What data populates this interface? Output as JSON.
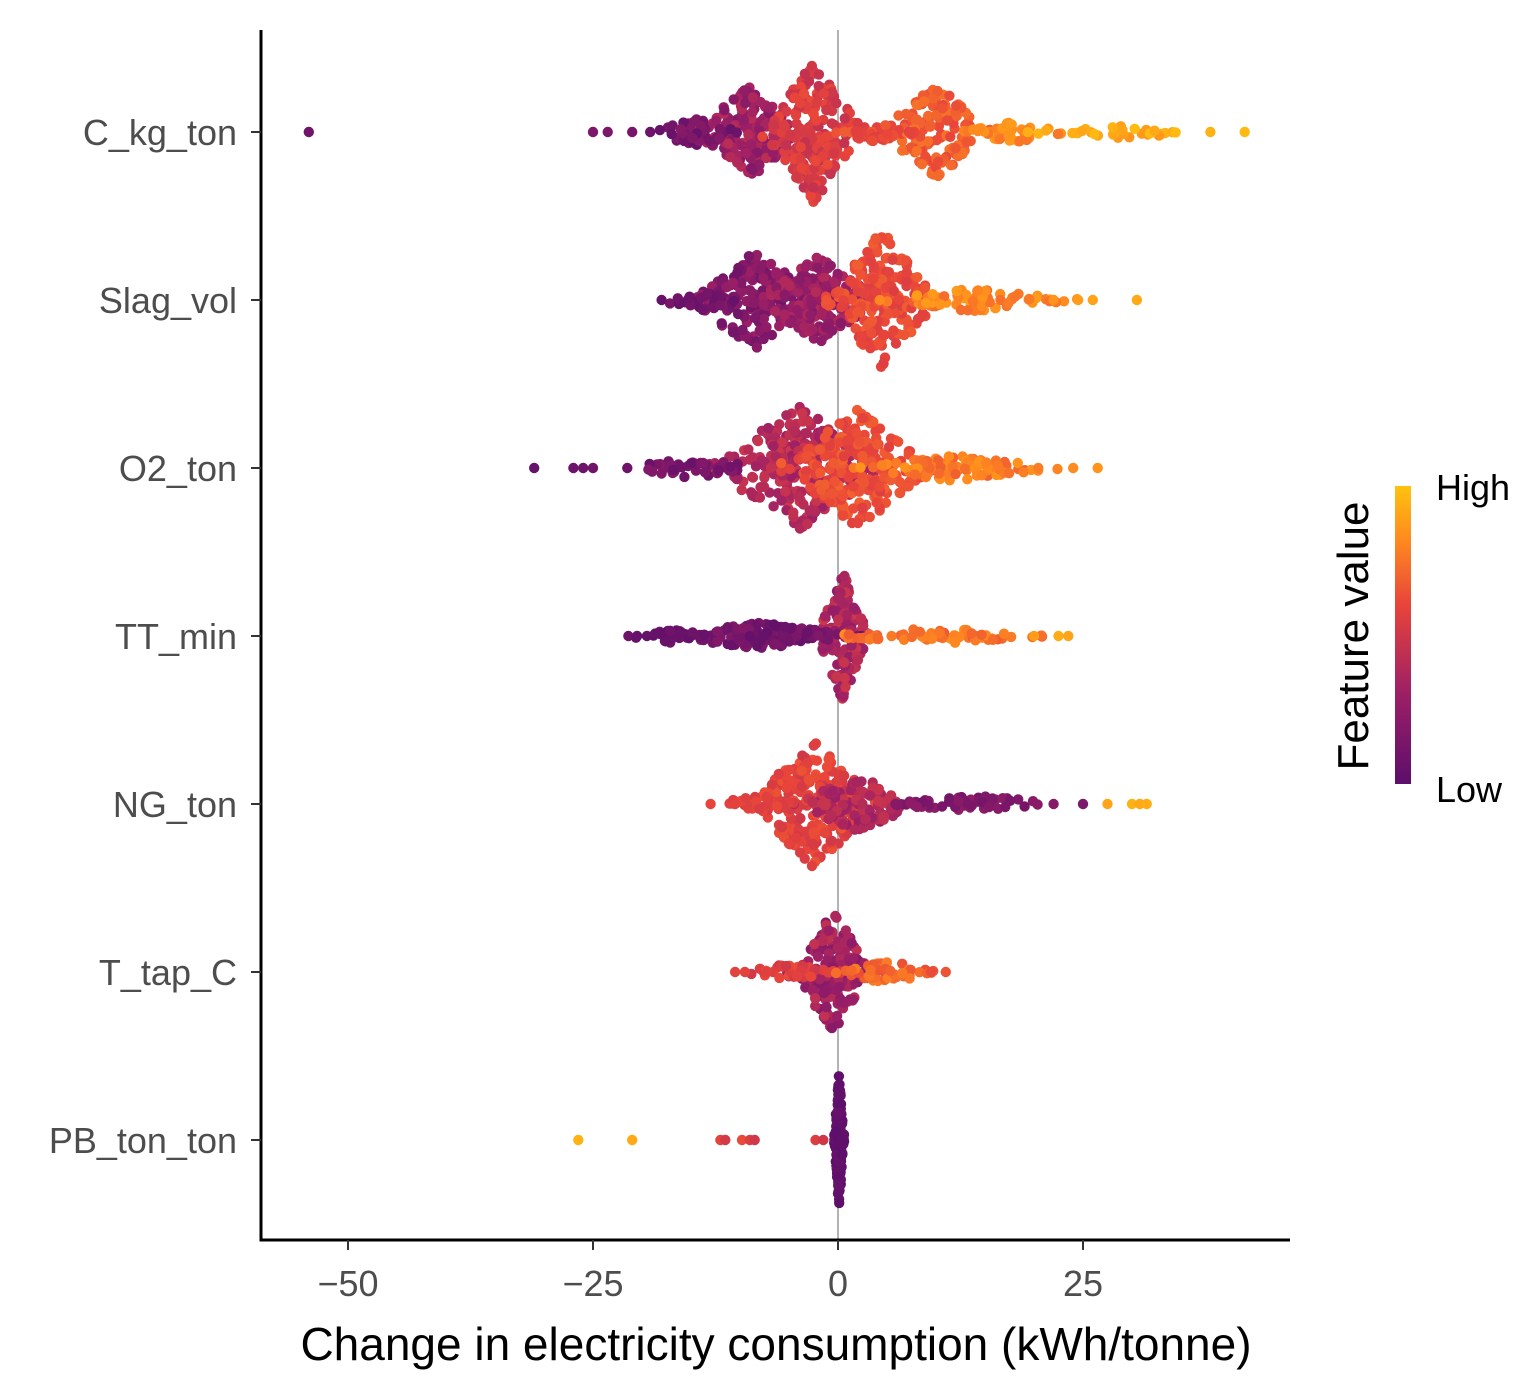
{
  "chart_data": {
    "type": "scatter",
    "subtype": "shap-beeswarm",
    "title": "",
    "xlabel": "Change in electricity consumption (kWh/tonne)",
    "ylabel": "",
    "xlim": [
      -60,
      46
    ],
    "x_ticks": [
      -50,
      -25,
      0,
      25
    ],
    "x_tick_labels": [
      "−50",
      "−25",
      "0",
      "25"
    ],
    "reference_line_x": 0,
    "grid": false,
    "categories": [
      "C_kg_ton",
      "Slag_vol",
      "O2_ton",
      "TT_min",
      "NG_ton",
      "T_tap_C",
      "PB_ton_ton"
    ],
    "legend": {
      "title": "Feature value",
      "high_label": "High",
      "low_label": "Low",
      "position": "right",
      "gradient_colors": [
        "#5c0f6b",
        "#9c1f66",
        "#e8443a",
        "#ff8a1f",
        "#ffc20f"
      ]
    },
    "features": [
      {
        "name": "C_kg_ton",
        "clusters": [
          {
            "center": -9,
            "spread": 2.2,
            "halfwidth": 0.28,
            "n": 180,
            "color_lo": 0.18,
            "color_hi": 0.42
          },
          {
            "center": -2.5,
            "spread": 2.0,
            "halfwidth": 0.42,
            "n": 220,
            "color_lo": 0.45,
            "color_hi": 0.62
          },
          {
            "center": 10,
            "spread": 2.3,
            "halfwidth": 0.28,
            "n": 150,
            "color_lo": 0.6,
            "color_hi": 0.75
          },
          {
            "center": -15,
            "spread": 2.0,
            "halfwidth": 0.09,
            "n": 45,
            "color_lo": 0.05,
            "color_hi": 0.2
          },
          {
            "center": 4,
            "spread": 2.0,
            "halfwidth": 0.06,
            "n": 35,
            "color_lo": 0.55,
            "color_hi": 0.68
          },
          {
            "center": 18,
            "spread": 3.0,
            "halfwidth": 0.06,
            "n": 45,
            "color_lo": 0.75,
            "color_hi": 0.88
          },
          {
            "center": 28,
            "spread": 4.0,
            "halfwidth": 0.04,
            "n": 30,
            "color_lo": 0.85,
            "color_hi": 0.98
          }
        ],
        "outliers": [
          [
            -54,
            0.1
          ],
          [
            -25,
            0.15
          ],
          [
            -23.5,
            0.15
          ],
          [
            -21,
            0.12
          ],
          [
            38,
            0.95
          ],
          [
            41.5,
            0.97
          ]
        ]
      },
      {
        "name": "Slag_vol",
        "clusters": [
          {
            "center": -8.5,
            "spread": 2.6,
            "halfwidth": 0.3,
            "n": 190,
            "color_lo": 0.08,
            "color_hi": 0.3
          },
          {
            "center": -2,
            "spread": 2.5,
            "halfwidth": 0.26,
            "n": 170,
            "color_lo": 0.2,
            "color_hi": 0.4
          },
          {
            "center": 4.5,
            "spread": 2.2,
            "halfwidth": 0.42,
            "n": 220,
            "color_lo": 0.55,
            "color_hi": 0.68
          },
          {
            "center": -14,
            "spread": 2.0,
            "halfwidth": 0.07,
            "n": 30,
            "color_lo": 0.05,
            "color_hi": 0.15
          },
          {
            "center": 14,
            "spread": 4.0,
            "halfwidth": 0.07,
            "n": 70,
            "color_lo": 0.72,
            "color_hi": 0.88
          }
        ],
        "outliers": [
          [
            -18,
            0.05
          ],
          [
            22,
            0.85
          ],
          [
            24.5,
            0.88
          ],
          [
            26,
            0.9
          ],
          [
            30.5,
            0.92
          ]
        ]
      },
      {
        "name": "O2_ton",
        "clusters": [
          {
            "center": -4,
            "spread": 3.5,
            "halfwidth": 0.38,
            "n": 260,
            "color_lo": 0.3,
            "color_hi": 0.5
          },
          {
            "center": 2,
            "spread": 3.0,
            "halfwidth": 0.36,
            "n": 240,
            "color_lo": 0.55,
            "color_hi": 0.7
          },
          {
            "center": -15,
            "spread": 3.0,
            "halfwidth": 0.06,
            "n": 40,
            "color_lo": 0.05,
            "color_hi": 0.2
          },
          {
            "center": 12,
            "spread": 4.0,
            "halfwidth": 0.08,
            "n": 100,
            "color_lo": 0.68,
            "color_hi": 0.85
          }
        ],
        "outliers": [
          [
            -31,
            0.05
          ],
          [
            -27,
            0.08
          ],
          [
            -26,
            0.08
          ],
          [
            -25,
            0.1
          ],
          [
            -21.5,
            0.08
          ],
          [
            24,
            0.82
          ],
          [
            26.5,
            0.85
          ]
        ]
      },
      {
        "name": "TT_min",
        "clusters": [
          {
            "center": 0.5,
            "spread": 1.0,
            "halfwidth": 0.4,
            "n": 150,
            "color_lo": 0.25,
            "color_hi": 0.5
          },
          {
            "center": -8,
            "spread": 4.0,
            "halfwidth": 0.08,
            "n": 140,
            "color_lo": 0.04,
            "color_hi": 0.18
          },
          {
            "center": 10,
            "spread": 4.5,
            "halfwidth": 0.05,
            "n": 70,
            "color_lo": 0.66,
            "color_hi": 0.84
          },
          {
            "center": -17,
            "spread": 2.0,
            "halfwidth": 0.04,
            "n": 25,
            "color_lo": 0.03,
            "color_hi": 0.1
          }
        ],
        "outliers": [
          [
            -20.5,
            0.05
          ],
          [
            -19.5,
            0.05
          ],
          [
            20,
            0.88
          ],
          [
            22.5,
            0.93
          ],
          [
            23.5,
            0.9
          ]
        ]
      },
      {
        "name": "NG_ton",
        "clusters": [
          {
            "center": -2.5,
            "spread": 2.6,
            "halfwidth": 0.38,
            "n": 240,
            "color_lo": 0.5,
            "color_hi": 0.65
          },
          {
            "center": 2,
            "spread": 2.5,
            "halfwidth": 0.17,
            "n": 110,
            "color_lo": 0.3,
            "color_hi": 0.48
          },
          {
            "center": -8,
            "spread": 2.0,
            "halfwidth": 0.05,
            "n": 30,
            "color_lo": 0.52,
            "color_hi": 0.62
          },
          {
            "center": 14,
            "spread": 4.0,
            "halfwidth": 0.05,
            "n": 60,
            "color_lo": 0.12,
            "color_hi": 0.25
          }
        ],
        "outliers": [
          [
            -13,
            0.6
          ],
          [
            -10.5,
            0.58
          ],
          [
            22,
            0.2
          ],
          [
            25,
            0.15
          ],
          [
            27.5,
            0.9
          ],
          [
            30,
            0.95
          ],
          [
            30.8,
            0.92
          ],
          [
            31.5,
            0.93
          ]
        ]
      },
      {
        "name": "T_tap_C",
        "clusters": [
          {
            "center": -0.5,
            "spread": 1.8,
            "halfwidth": 0.35,
            "n": 170,
            "color_lo": 0.2,
            "color_hi": 0.45
          },
          {
            "center": -5,
            "spread": 2.0,
            "halfwidth": 0.05,
            "n": 40,
            "color_lo": 0.5,
            "color_hi": 0.62
          },
          {
            "center": 5,
            "spread": 2.0,
            "halfwidth": 0.07,
            "n": 50,
            "color_lo": 0.62,
            "color_hi": 0.78
          }
        ],
        "outliers": [
          [
            -10.5,
            0.58
          ],
          [
            -9.5,
            0.58
          ],
          [
            9.5,
            0.62
          ],
          [
            11,
            0.65
          ]
        ]
      },
      {
        "name": "PB_ton_ton",
        "clusters": [
          {
            "center": 0.1,
            "spread": 0.2,
            "halfwidth": 0.4,
            "n": 160,
            "color_lo": 0.0,
            "color_hi": 0.05
          }
        ],
        "outliers": [
          [
            -26.5,
            0.95
          ],
          [
            -21,
            0.92
          ],
          [
            -12,
            0.58
          ],
          [
            -11.5,
            0.52
          ],
          [
            -9.8,
            0.62
          ],
          [
            -9,
            0.55
          ],
          [
            -8.5,
            0.5
          ],
          [
            -2.3,
            0.55
          ],
          [
            -1.5,
            0.5
          ]
        ]
      }
    ]
  }
}
